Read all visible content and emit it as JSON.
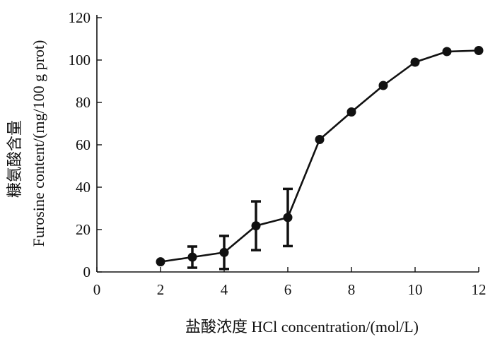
{
  "chart_data": {
    "type": "line",
    "xlabel": "盐酸浓度  HCl concentration/(mol/L)",
    "ylabel_cn": "糠氨酸含量",
    "ylabel_en": "Furosine content/(mg/100 g prot)",
    "xlim": [
      0,
      12
    ],
    "ylim": [
      0,
      120
    ],
    "x_ticks": [
      "0",
      "2",
      "4",
      "6",
      "8",
      "10",
      "12"
    ],
    "y_ticks": [
      "0",
      "20",
      "40",
      "60",
      "80",
      "100",
      "120"
    ],
    "grid": false,
    "legend": "none",
    "series": [
      {
        "x": [
          2,
          3,
          4,
          5,
          6,
          7,
          8,
          9,
          10,
          11,
          12
        ],
        "y": [
          4.8,
          7.0,
          9.2,
          21.8,
          25.7,
          62.5,
          75.5,
          88.0,
          99.0,
          104.0,
          104.5
        ],
        "error": [
          0,
          5.0,
          7.8,
          11.5,
          13.5,
          0,
          0,
          0,
          0,
          0,
          0
        ]
      }
    ],
    "colors": {
      "line": "#111111",
      "marker": "#111111",
      "axis": "#111111"
    }
  }
}
